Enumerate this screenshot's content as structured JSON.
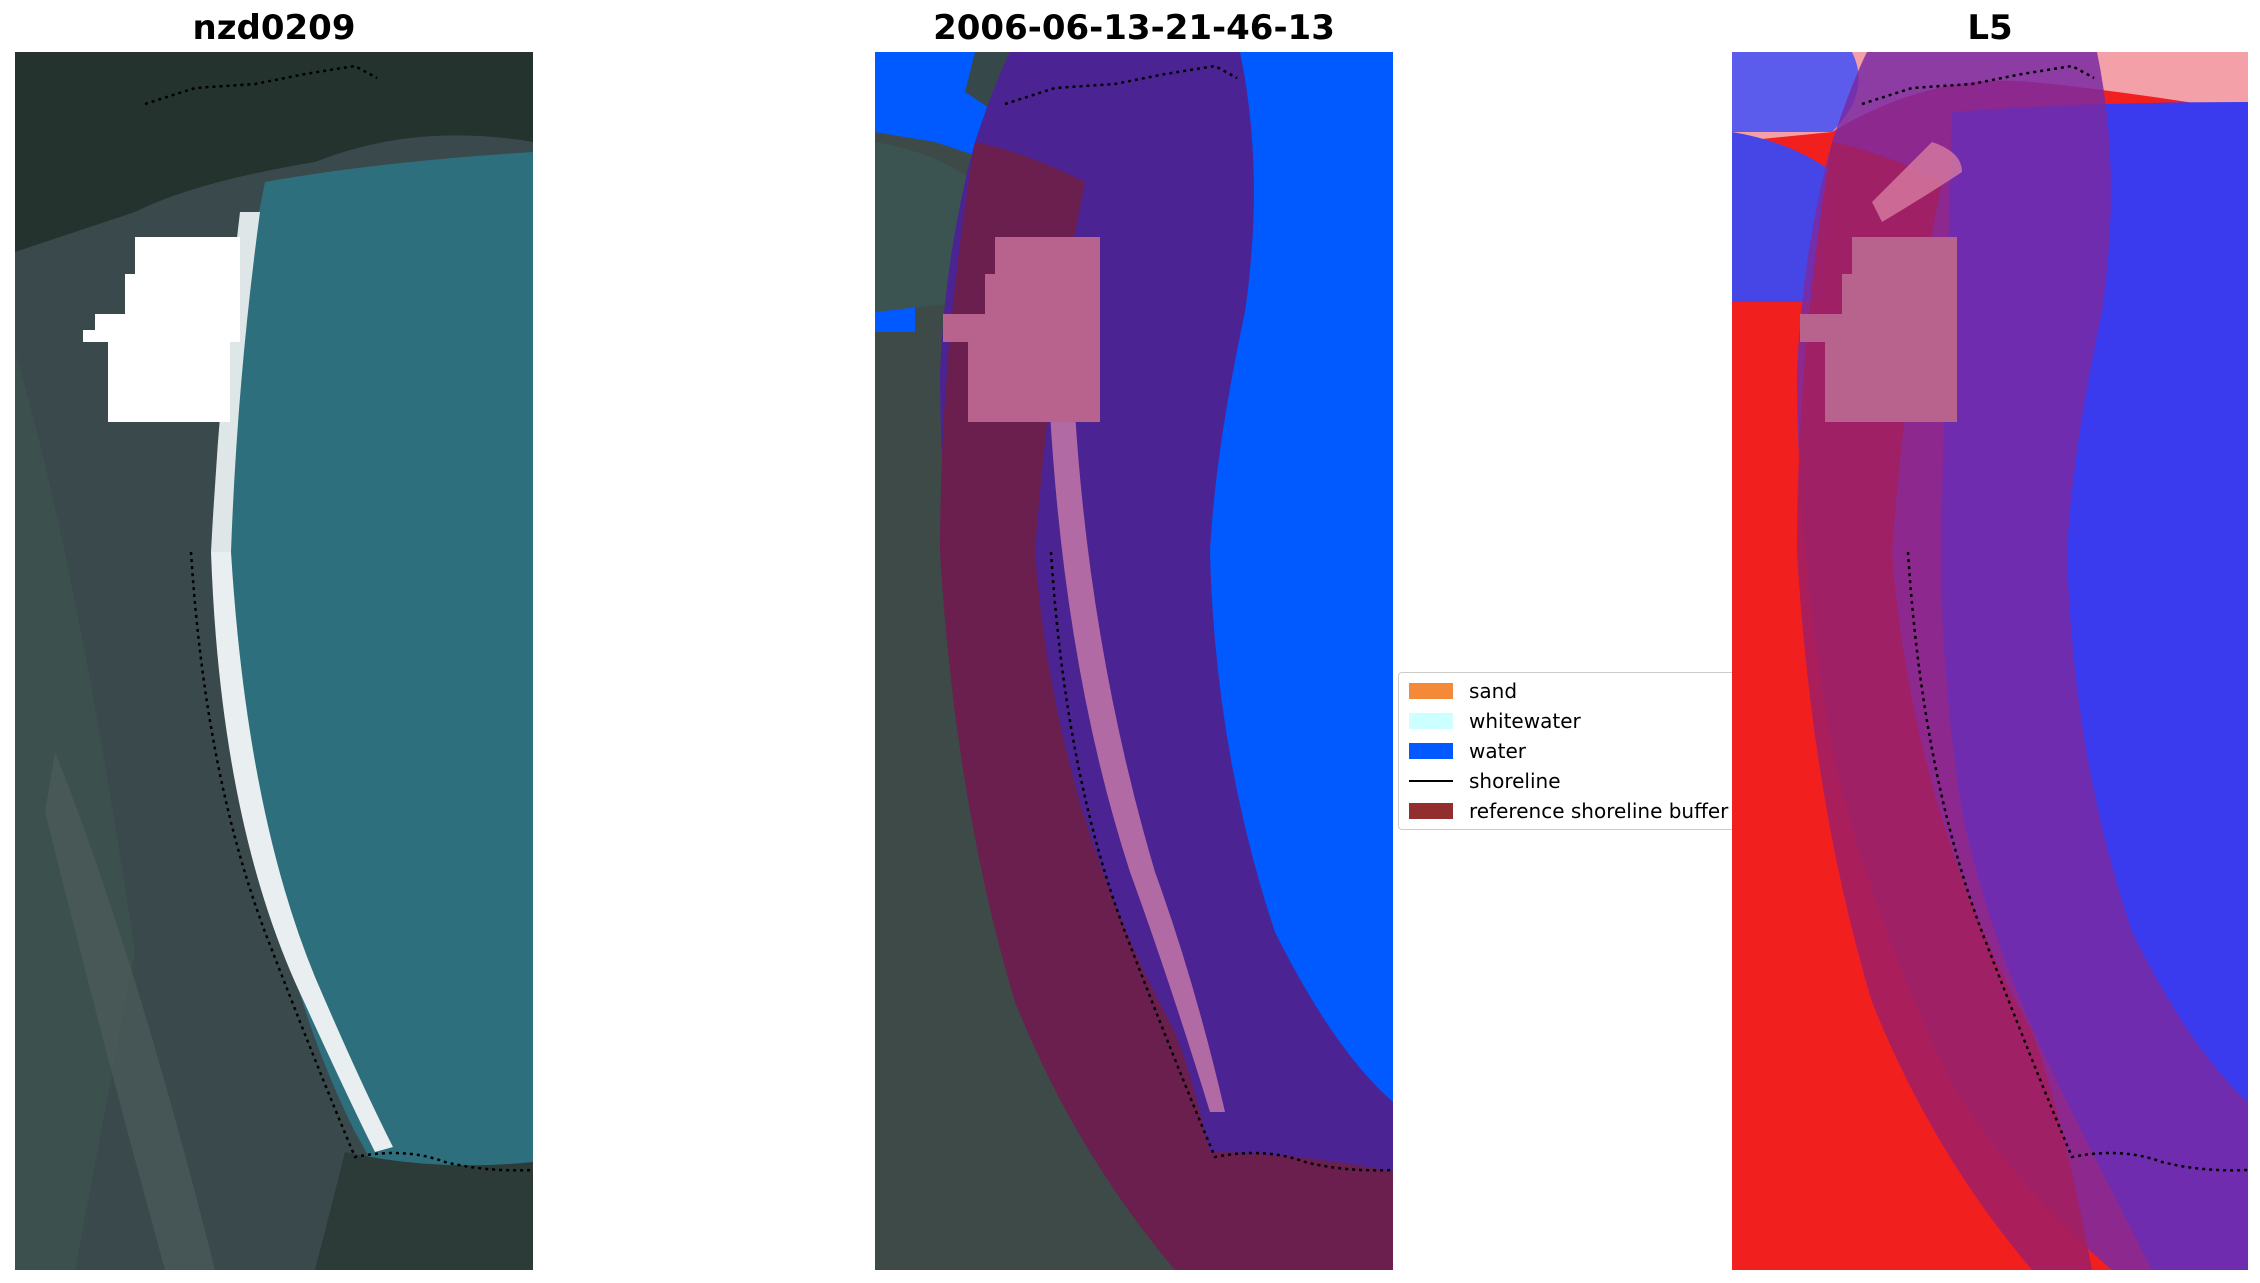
{
  "panels": [
    {
      "title": "nzd0209"
    },
    {
      "title": "2006-06-13-21-46-13"
    },
    {
      "title": "L5"
    }
  ],
  "legend": {
    "items": [
      {
        "label": "sand",
        "color": "#f28a3a",
        "kind": "patch"
      },
      {
        "label": "whitewater",
        "color": "#ccffff",
        "kind": "patch"
      },
      {
        "label": "water",
        "color": "#005aff",
        "kind": "patch"
      },
      {
        "label": "shoreline",
        "color": "#000000",
        "kind": "line"
      },
      {
        "label": "reference shoreline buffer",
        "color": "#922e2e",
        "kind": "patch"
      }
    ]
  }
}
